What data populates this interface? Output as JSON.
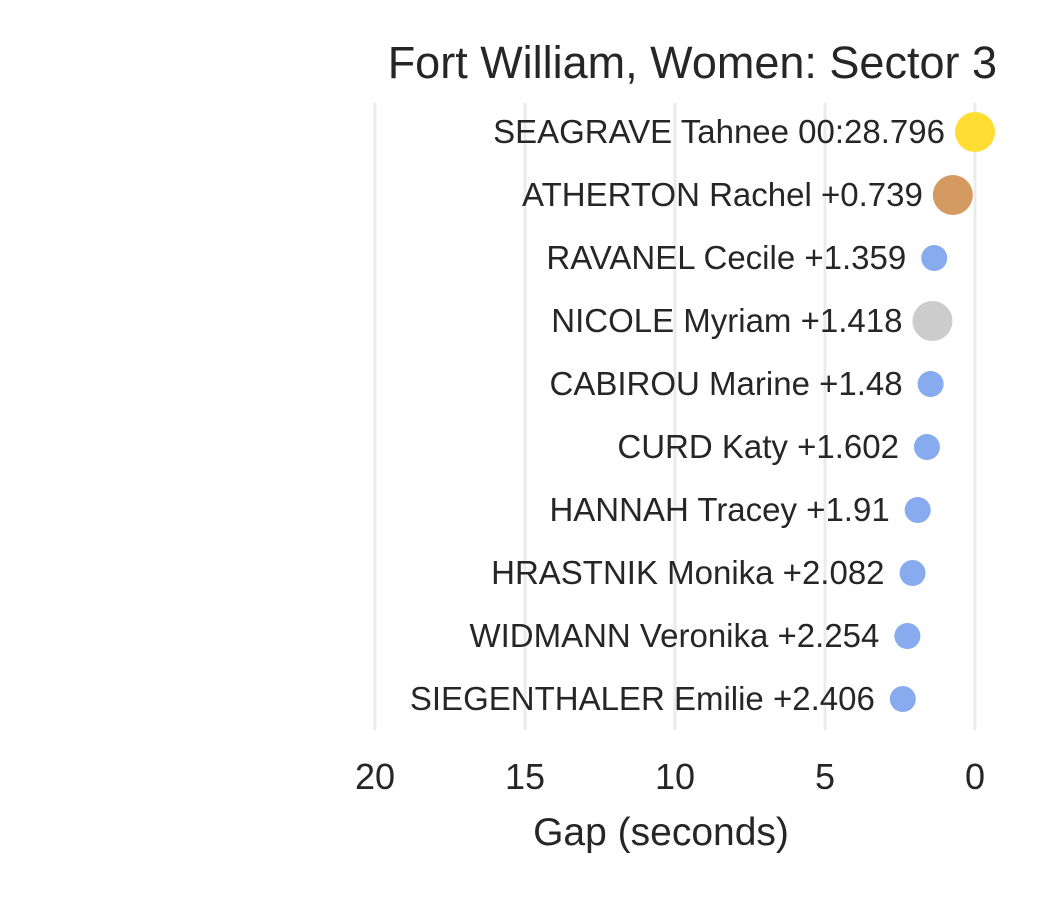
{
  "chart_data": {
    "type": "scatter",
    "title": "Fort William, Women: Sector 3",
    "xlabel": "Gap (seconds)",
    "ylabel": "",
    "xlim": [
      20,
      0
    ],
    "x_reversed": true,
    "xticks": [
      "20",
      "15",
      "10",
      "5",
      "0"
    ],
    "xtick_values": [
      20,
      15,
      10,
      5,
      0
    ],
    "grid": "vertical",
    "legend": "none",
    "points": [
      {
        "label": "SEAGRAVE Tahnee 00:28.796",
        "gap": 0,
        "highlight": "gold",
        "color": "#FFDD33"
      },
      {
        "label": "ATHERTON Rachel +0.739",
        "gap": 0.739,
        "highlight": "bronze",
        "color": "#D59A62"
      },
      {
        "label": "RAVANEL Cecile +1.359",
        "gap": 1.359,
        "highlight": "none",
        "color": "#88AAEE"
      },
      {
        "label": "NICOLE Myriam +1.418",
        "gap": 1.418,
        "highlight": "silver",
        "color": "#CCCCCC"
      },
      {
        "label": "CABIROU Marine +1.48",
        "gap": 1.48,
        "highlight": "none",
        "color": "#88AAEE"
      },
      {
        "label": "CURD Katy +1.602",
        "gap": 1.602,
        "highlight": "none",
        "color": "#88AAEE"
      },
      {
        "label": "HANNAH Tracey +1.91",
        "gap": 1.91,
        "highlight": "none",
        "color": "#88AAEE"
      },
      {
        "label": "HRASTNIK Monika +2.082",
        "gap": 2.082,
        "highlight": "none",
        "color": "#88AAEE"
      },
      {
        "label": "WIDMANN Veronika +2.254",
        "gap": 2.254,
        "highlight": "none",
        "color": "#88AAEE"
      },
      {
        "label": "SIEGENTHALER Emilie +2.406",
        "gap": 2.406,
        "highlight": "none",
        "color": "#88AAEE"
      }
    ]
  }
}
